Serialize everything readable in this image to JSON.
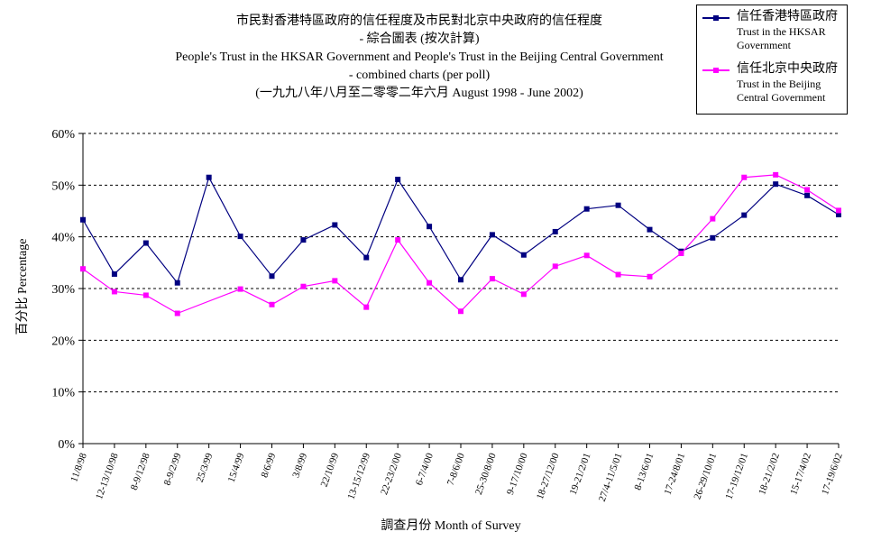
{
  "chart_data": {
    "type": "line",
    "title": [
      "市民對香港特區政府的信任程度及市民對北京中央政府的信任程度",
      "- 綜合圖表 (按次計算)",
      "People's Trust in the HKSAR Government and People's Trust in the Beijing Central Government",
      "- combined charts (per poll)",
      "(一九九八年八月至二零零二年六月 August 1998 - June 2002)"
    ],
    "xlabel": "調查月份 Month of Survey",
    "ylabel": "百分比 Percentage",
    "ylim": [
      0,
      60
    ],
    "yticks": [
      "0%",
      "10%",
      "20%",
      "30%",
      "40%",
      "50%",
      "60%"
    ],
    "grid": true,
    "legend_position": "top-right",
    "categories": [
      "11/8/98",
      "12-13/10/98",
      "8-9/12/98",
      "8-9/2/99",
      "25/3/99",
      "15/4/99",
      "8/6/99",
      "3/8/99",
      "22/10/99",
      "13-15/12/99",
      "22-23/2/00",
      "6-7/4/00",
      "7-8/6/00",
      "25-30/8/00",
      "9-17/10/00",
      "18-27/12/00",
      "19-21/2/01",
      "27/4-11/5/01",
      "8-13/6/01",
      "17-24/8/01",
      "26-29/10/01",
      "17-19/12/01",
      "18-21/2/02",
      "15-17/4/02",
      "17-19/6/02"
    ],
    "series": [
      {
        "name": [
          "信任香港特區政府",
          "Trust in the HKSAR",
          "Government"
        ],
        "color": "#000080",
        "marker": "square",
        "values": [
          43.3,
          32.8,
          38.8,
          31.1,
          51.5,
          40.1,
          32.4,
          39.4,
          42.3,
          36.0,
          51.1,
          42.0,
          31.7,
          40.4,
          36.5,
          41.0,
          45.4,
          46.1,
          41.4,
          37.2,
          39.8,
          44.2,
          50.2,
          48.0,
          44.3
        ]
      },
      {
        "name": [
          "信任北京中央政府",
          "Trust in the Beijing",
          "Central Government"
        ],
        "color": "#ff00ff",
        "marker": "square",
        "values": [
          33.8,
          29.4,
          28.7,
          25.2,
          null,
          29.9,
          26.9,
          30.4,
          31.5,
          26.4,
          39.4,
          31.1,
          25.6,
          31.9,
          28.9,
          34.3,
          36.4,
          32.7,
          32.3,
          36.8,
          43.5,
          51.5,
          52.0,
          49.1,
          45.1
        ]
      }
    ]
  }
}
